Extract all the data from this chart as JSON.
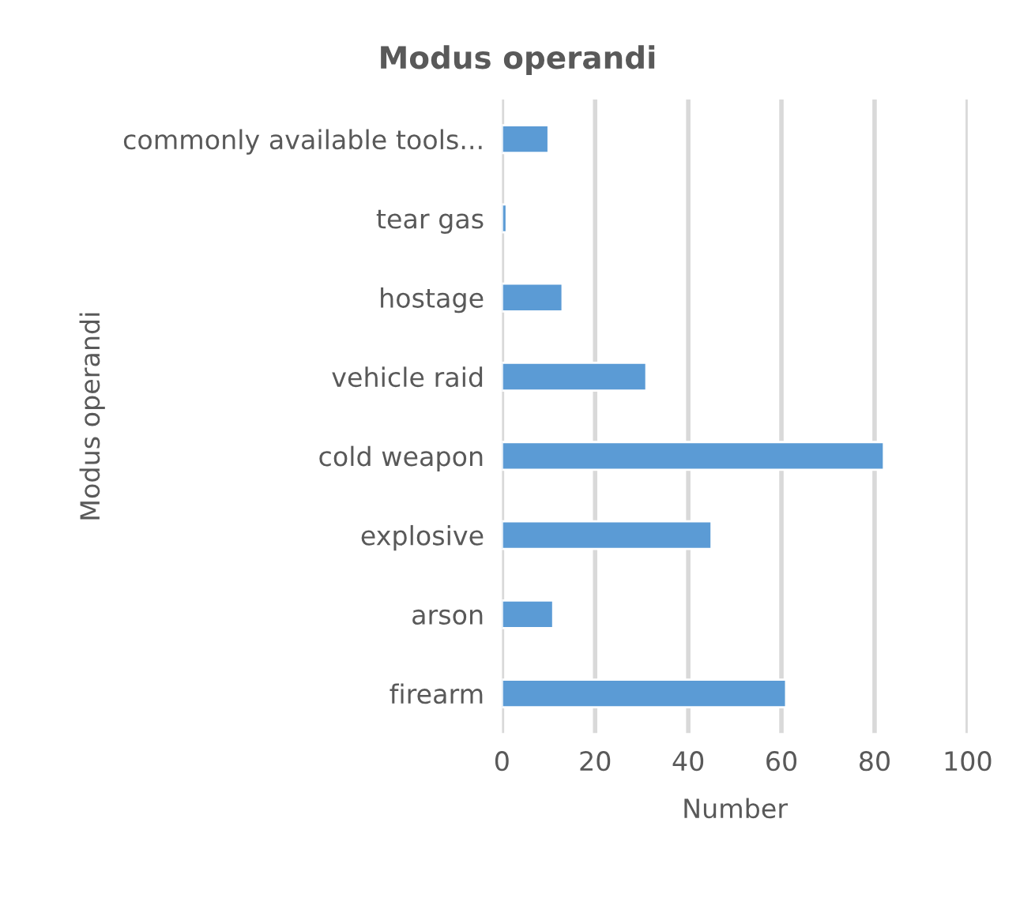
{
  "chart_data": {
    "type": "bar",
    "orientation": "horizontal",
    "title": "Modus operandi",
    "xlabel": "Number",
    "ylabel": "Modus operandi",
    "categories": [
      "commonly available tools...",
      "tear gas",
      "hostage",
      "vehicle raid",
      "cold weapon",
      "explosive",
      "arson",
      "firearm"
    ],
    "values": [
      10,
      1,
      13,
      31,
      82,
      45,
      11,
      61
    ],
    "color": "#5b9bd5",
    "xlim": [
      0,
      100
    ],
    "xticks": [
      0,
      20,
      40,
      60,
      80,
      100
    ],
    "grid": "x"
  }
}
